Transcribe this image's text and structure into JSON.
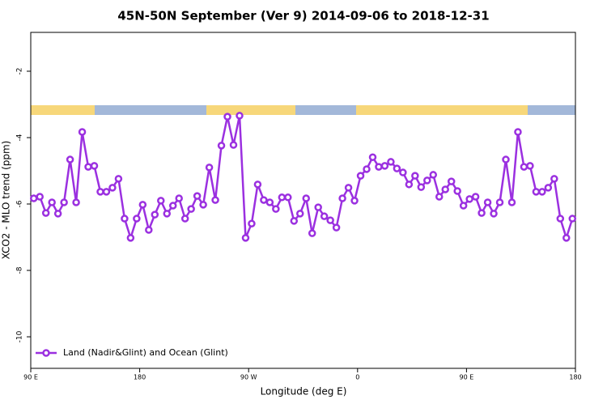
{
  "chart_data": {
    "type": "line",
    "title": "45N-50N September (Ver 9)   2014-09-06 to 2018-12-31",
    "x_label": "Longitude (deg E)",
    "y_label": "XCO2 - MLO trend (ppm)",
    "xlim": [
      90,
      540
    ],
    "xticks": [
      {
        "value": 90,
        "label": "90 E"
      },
      180,
      {
        "value": 270,
        "label": "90 W"
      },
      {
        "value": 360,
        "label": "0"
      },
      {
        "value": 450,
        "label": "90 E"
      },
      {
        "value": 540,
        "label": "180"
      }
    ],
    "ylim": [
      -10.95,
      -0.83
    ],
    "yticks": [
      -10,
      -8,
      -6,
      -4,
      -2
    ],
    "legend": "bottom-left",
    "x": [
      92.5,
      97.5,
      102.5,
      107.5,
      112.5,
      117.5,
      122.5,
      127.5,
      132.5,
      137.5,
      142.5,
      147.5,
      152.5,
      157.5,
      162.5,
      167.5,
      172.5,
      177.5,
      182.5,
      187.5,
      192.5,
      197.5,
      202.5,
      207.5,
      212.5,
      217.5,
      222.5,
      227.5,
      232.5,
      237.5,
      242.5,
      247.5,
      252.5,
      257.5,
      262.5,
      267.5,
      272.5,
      277.5,
      282.5,
      287.5,
      292.5,
      297.5,
      302.5,
      307.5,
      312.5,
      317.5,
      322.5,
      327.5,
      332.5,
      337.5,
      342.5,
      347.5,
      352.5,
      357.5,
      362.5,
      367.5,
      372.5,
      377.5,
      382.5,
      387.5,
      392.5,
      397.5,
      402.5,
      407.5,
      412.5,
      417.5,
      422.5,
      427.5,
      432.5,
      437.5,
      442.5,
      447.5,
      452.5,
      457.5,
      462.5,
      467.5,
      472.5,
      477.5,
      482.5,
      487.5,
      492.5,
      497.5,
      502.5,
      507.5,
      512.5,
      517.5,
      522.5,
      527.5,
      532.5,
      537.5
    ],
    "series": [
      {
        "name": "Land (Nadir&Glint) and Ocean (Glint)",
        "color": "#9b30e0",
        "values": [
          -5.83,
          -5.78,
          -6.27,
          -5.95,
          -6.29,
          -5.95,
          -4.66,
          -5.95,
          -3.83,
          -4.88,
          -4.85,
          -5.63,
          -5.63,
          -5.51,
          -5.24,
          -6.44,
          -7.02,
          -6.44,
          -6.02,
          -6.78,
          -6.32,
          -5.9,
          -6.29,
          -6.05,
          -5.83,
          -6.44,
          -6.15,
          -5.76,
          -6.02,
          -4.9,
          -5.88,
          -4.24,
          -3.37,
          -4.22,
          -3.34,
          -7.02,
          -6.59,
          -5.41,
          -5.88,
          -5.95,
          -6.15,
          -5.8,
          -5.8,
          -6.51,
          -6.29,
          -5.83,
          -6.88,
          -6.1,
          -6.37,
          -6.49,
          -6.71,
          -5.83,
          -5.51,
          -5.9,
          -5.15,
          -4.95,
          -4.59,
          -4.88,
          -4.85,
          -4.73,
          -4.93,
          -5.05,
          -5.41,
          -5.15,
          -5.49,
          -5.29,
          -5.12,
          -5.78,
          -5.56,
          -5.32,
          -5.61,
          -6.05,
          -5.85,
          -5.78,
          -6.27,
          -5.95,
          -6.29,
          -5.95,
          -4.66,
          -5.95,
          -3.83,
          -4.88,
          -4.85,
          -5.63,
          -5.63,
          -5.51,
          -5.24,
          -6.44,
          -7.02,
          -6.44
        ]
      }
    ]
  }
}
